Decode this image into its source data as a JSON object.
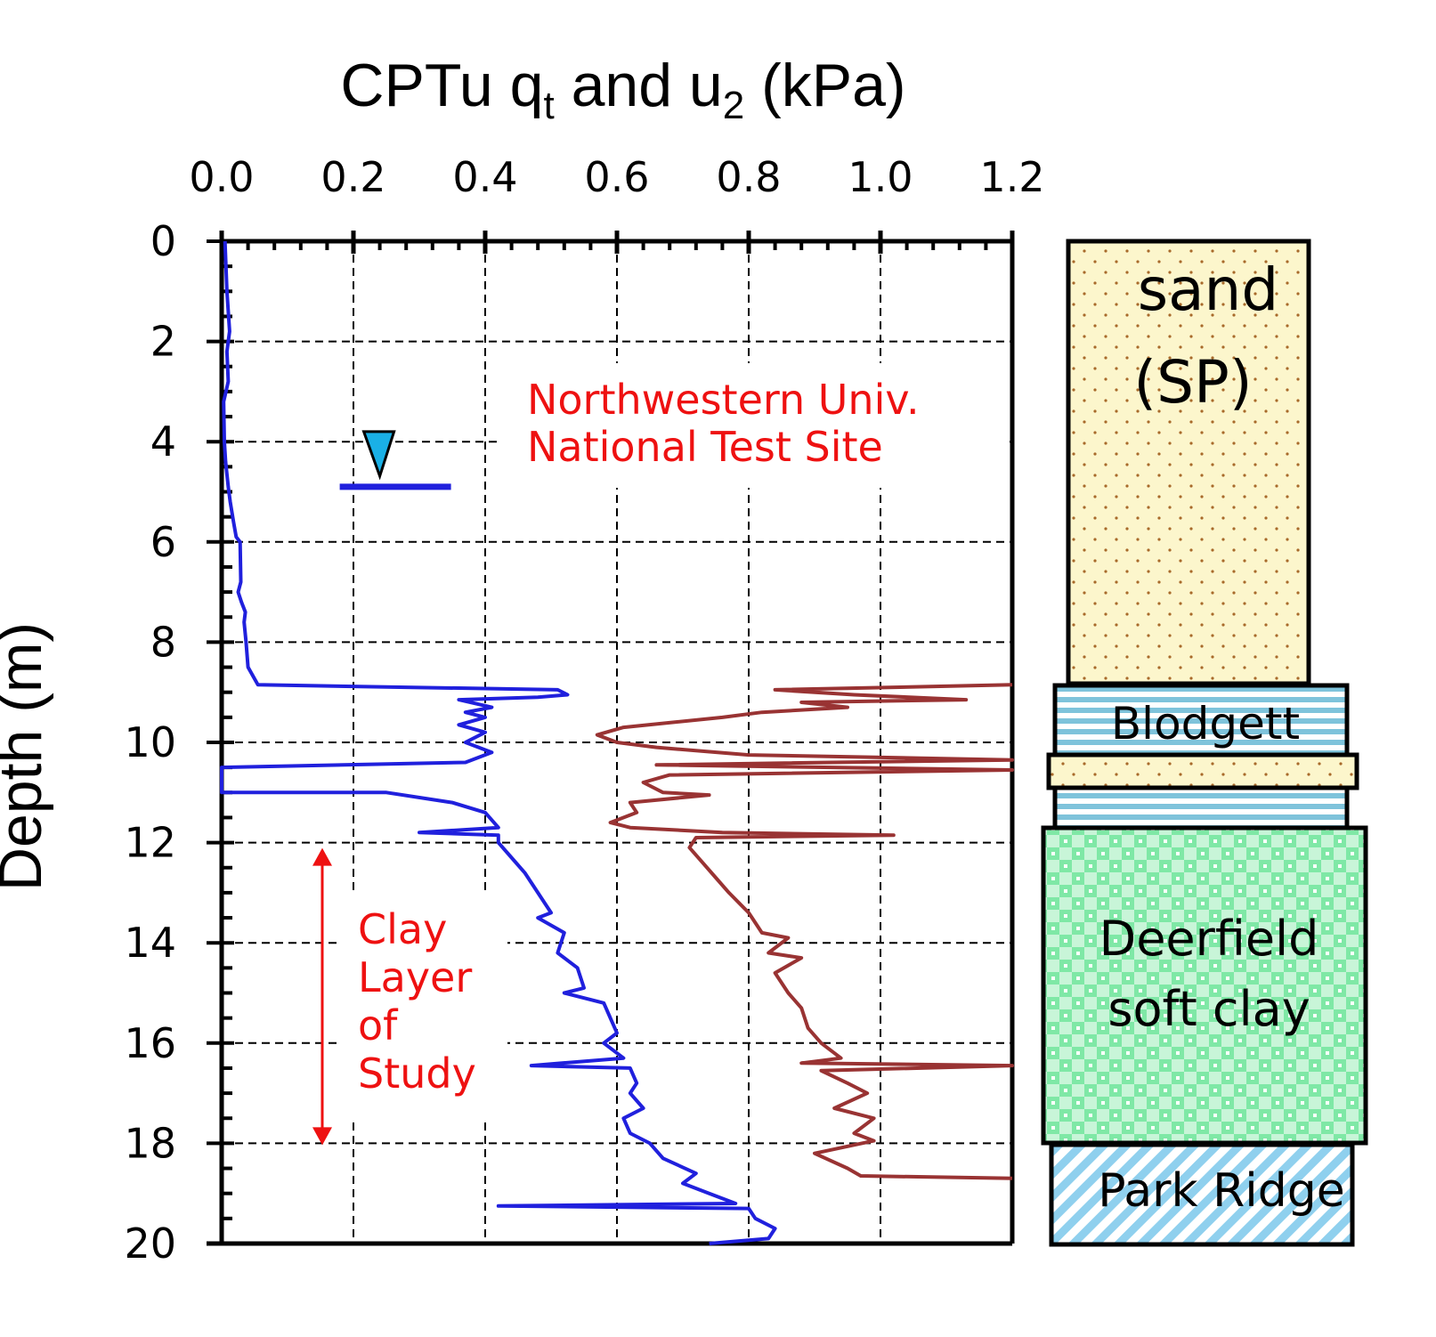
{
  "chart_data": {
    "type": "line",
    "title": "CPTu q",
    "title_sub1": "t",
    "title_mid": " and u",
    "title_sub2": "2",
    "title_end": " (kPa)",
    "ylabel": "Depth (m)",
    "x_ticks": [
      "0.0",
      "0.2",
      "0.4",
      "0.6",
      "0.8",
      "1.0",
      "1.2"
    ],
    "y_ticks": [
      "0",
      "2",
      "4",
      "6",
      "8",
      "10",
      "12",
      "14",
      "16",
      "18",
      "20"
    ],
    "xlim": [
      0,
      1.2
    ],
    "ylim": [
      0,
      20
    ],
    "y_inverted": true,
    "grid": "dashed",
    "annotation_site": [
      "Northwestern Univ.",
      "National Test Site"
    ],
    "annotation_clay": [
      "Clay",
      "Layer",
      "of",
      "Study"
    ],
    "clay_layer_depth": [
      12,
      18
    ],
    "water_table": {
      "x": 0.24,
      "y": 4.9,
      "color": "#1ab0e6"
    },
    "series": [
      {
        "color": "#2020dd",
        "points": [
          [
            0.005,
            0
          ],
          [
            0.008,
            1
          ],
          [
            0.012,
            1.8
          ],
          [
            0.008,
            2.2
          ],
          [
            0.01,
            2.8
          ],
          [
            0.003,
            3.2
          ],
          [
            0.004,
            4
          ],
          [
            0.006,
            4.4
          ],
          [
            0.01,
            4.9
          ],
          [
            0.013,
            5.2
          ],
          [
            0.018,
            5.6
          ],
          [
            0.022,
            5.9
          ],
          [
            0.028,
            6
          ],
          [
            0.029,
            6.8
          ],
          [
            0.025,
            7
          ],
          [
            0.03,
            7.2
          ],
          [
            0.036,
            7.4
          ],
          [
            0.034,
            7.6
          ],
          [
            0.037,
            8
          ],
          [
            0.04,
            8.5
          ],
          [
            0.055,
            8.85
          ],
          [
            0.51,
            8.95
          ],
          [
            0.525,
            9.05
          ],
          [
            0.48,
            9.1
          ],
          [
            0.36,
            9.15
          ],
          [
            0.41,
            9.3
          ],
          [
            0.37,
            9.4
          ],
          [
            0.4,
            9.5
          ],
          [
            0.36,
            9.65
          ],
          [
            0.4,
            9.8
          ],
          [
            0.37,
            10
          ],
          [
            0.41,
            10.2
          ],
          [
            0.37,
            10.4
          ],
          [
            0.0,
            10.5
          ],
          [
            0.0,
            11.0
          ],
          [
            0.25,
            11.0
          ],
          [
            0.35,
            11.2
          ],
          [
            0.4,
            11.4
          ],
          [
            0.42,
            11.7
          ],
          [
            0.3,
            11.8
          ],
          [
            0.42,
            11.85
          ],
          [
            0.42,
            12.0
          ],
          [
            0.44,
            12.3
          ],
          [
            0.46,
            12.6
          ],
          [
            0.48,
            13.0
          ],
          [
            0.5,
            13.4
          ],
          [
            0.48,
            13.5
          ],
          [
            0.52,
            13.8
          ],
          [
            0.51,
            14.2
          ],
          [
            0.54,
            14.5
          ],
          [
            0.55,
            14.9
          ],
          [
            0.52,
            15.0
          ],
          [
            0.58,
            15.2
          ],
          [
            0.59,
            15.5
          ],
          [
            0.6,
            15.8
          ],
          [
            0.58,
            16.0
          ],
          [
            0.61,
            16.3
          ],
          [
            0.47,
            16.45
          ],
          [
            0.62,
            16.5
          ],
          [
            0.63,
            16.8
          ],
          [
            0.62,
            17.0
          ],
          [
            0.64,
            17.3
          ],
          [
            0.61,
            17.5
          ],
          [
            0.62,
            17.8
          ],
          [
            0.65,
            18.0
          ],
          [
            0.67,
            18.3
          ],
          [
            0.72,
            18.6
          ],
          [
            0.7,
            18.8
          ],
          [
            0.74,
            19.0
          ],
          [
            0.78,
            19.2
          ],
          [
            0.42,
            19.25
          ],
          [
            0.8,
            19.3
          ],
          [
            0.81,
            19.5
          ],
          [
            0.84,
            19.7
          ],
          [
            0.83,
            19.9
          ],
          [
            0.74,
            20.0
          ]
        ]
      },
      {
        "color": "#993333",
        "points": [
          [
            1.2,
            8.85
          ],
          [
            0.84,
            8.95
          ],
          [
            0.96,
            9.05
          ],
          [
            1.13,
            9.15
          ],
          [
            0.88,
            9.2
          ],
          [
            0.95,
            9.3
          ],
          [
            0.82,
            9.4
          ],
          [
            0.76,
            9.5
          ],
          [
            0.61,
            9.7
          ],
          [
            0.57,
            9.85
          ],
          [
            0.6,
            10.0
          ],
          [
            0.66,
            10.1
          ],
          [
            0.8,
            10.25
          ],
          [
            1.2,
            10.35
          ],
          [
            0.66,
            10.45
          ],
          [
            1.2,
            10.55
          ],
          [
            0.68,
            10.65
          ],
          [
            0.64,
            10.8
          ],
          [
            0.67,
            11.0
          ],
          [
            0.74,
            11.05
          ],
          [
            0.62,
            11.2
          ],
          [
            0.63,
            11.4
          ],
          [
            0.59,
            11.6
          ],
          [
            0.62,
            11.7
          ],
          [
            0.76,
            11.8
          ],
          [
            1.02,
            11.85
          ],
          [
            0.72,
            11.9
          ],
          [
            0.71,
            12.1
          ],
          [
            0.73,
            12.4
          ],
          [
            0.75,
            12.7
          ],
          [
            0.77,
            13.0
          ],
          [
            0.8,
            13.4
          ],
          [
            0.82,
            13.8
          ],
          [
            0.86,
            13.9
          ],
          [
            0.83,
            14.2
          ],
          [
            0.88,
            14.3
          ],
          [
            0.84,
            14.6
          ],
          [
            0.86,
            15.0
          ],
          [
            0.88,
            15.3
          ],
          [
            0.89,
            15.7
          ],
          [
            0.91,
            16.0
          ],
          [
            0.94,
            16.3
          ],
          [
            0.88,
            16.4
          ],
          [
            1.2,
            16.45
          ],
          [
            0.91,
            16.55
          ],
          [
            0.95,
            16.8
          ],
          [
            0.98,
            17.0
          ],
          [
            0.93,
            17.3
          ],
          [
            0.99,
            17.5
          ],
          [
            0.96,
            17.8
          ],
          [
            0.99,
            17.95
          ],
          [
            0.9,
            18.2
          ],
          [
            0.95,
            18.5
          ],
          [
            0.97,
            18.65
          ],
          [
            1.2,
            18.7
          ]
        ]
      }
    ],
    "soil_layers": [
      {
        "name": "sand (SP)",
        "lines": [
          "sand",
          "(SP)"
        ],
        "pattern": "dots-yellow"
      },
      {
        "name": "Blodgett",
        "lines": [
          "Blodgett"
        ],
        "pattern": "stripes-blue"
      },
      {
        "name": "sand lens",
        "lines": [],
        "pattern": "dots-yellow"
      },
      {
        "name": "Deerfield soft clay",
        "lines": [
          "Deerfield",
          "soft  clay"
        ],
        "pattern": "checker-green"
      },
      {
        "name": "Park Ridge",
        "lines": [
          "Park Ridge"
        ],
        "pattern": "diagonal-blue"
      }
    ]
  }
}
